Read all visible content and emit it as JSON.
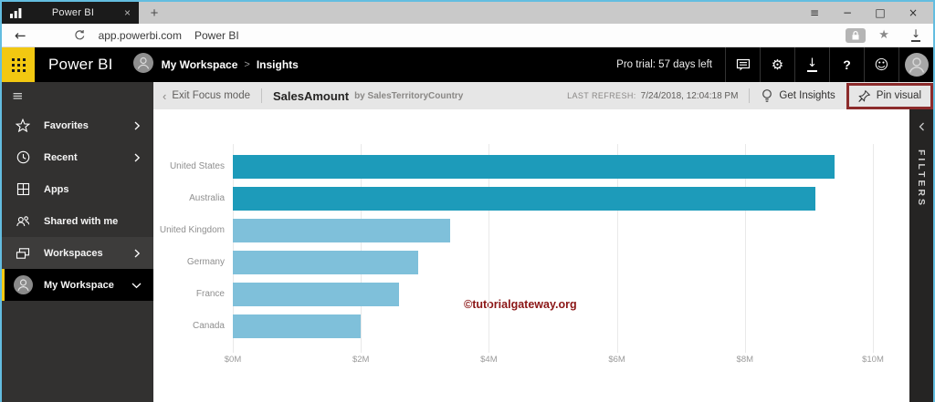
{
  "browser": {
    "tab_title": "Power BI",
    "url": "app.powerbi.com",
    "page_title": "Power BI"
  },
  "glyphs": {
    "back": "←",
    "menu": "≡",
    "minimize": "−",
    "maximize": "□",
    "close": "×",
    "tab_close": "×",
    "new_tab": "+",
    "bookmark_star": "★",
    "download_arrow": "↓",
    "gear": "⚙",
    "help": "?",
    "smiley": "☺",
    "hamburger": "≡",
    "chevron_left": "‹"
  },
  "header": {
    "brand": "Power BI",
    "breadcrumb": {
      "workspace": "My Workspace",
      "separator": ">",
      "page": "Insights"
    },
    "pro_trial": "Pro trial: 57 days left",
    "icon_names": [
      "feedback-bubble-icon",
      "gear-icon",
      "download-icon",
      "help-icon",
      "smiley-icon",
      "profile-avatar"
    ]
  },
  "sidebar": {
    "items": [
      {
        "label": "Favorites",
        "icon": "star",
        "chevron": "right",
        "state": "normal"
      },
      {
        "label": "Recent",
        "icon": "clock",
        "chevron": "right",
        "state": "normal"
      },
      {
        "label": "Apps",
        "icon": "apps",
        "chevron": null,
        "state": "normal"
      },
      {
        "label": "Shared with me",
        "icon": "people",
        "chevron": null,
        "state": "normal"
      },
      {
        "label": "Workspaces",
        "icon": "workspaces",
        "chevron": "right",
        "state": "highlight"
      },
      {
        "label": "My Workspace",
        "icon": "avatar",
        "chevron": "down",
        "state": "selected"
      }
    ]
  },
  "toolbar": {
    "exit_focus_label": "Exit Focus mode",
    "title": "SalesAmount",
    "subtitle": "by SalesTerritoryCountry",
    "last_refresh_label": "LAST REFRESH:",
    "last_refresh_value": "7/24/2018, 12:04:18 PM",
    "get_insights_label": "Get Insights",
    "pin_visual_label": "Pin visual"
  },
  "filters_panel": {
    "label": "FILTERS"
  },
  "watermark": "©tutorialgateway.org",
  "colors": {
    "accent_yellow": "#f2c811",
    "bar_dark": "#1d9bba",
    "bar_light": "#7fc0da",
    "pin_highlight_border": "#8c2b2b",
    "watermark_red": "#8b1616"
  },
  "chart_data": {
    "type": "bar",
    "orientation": "horizontal",
    "title": "SalesAmount by SalesTerritoryCountry",
    "categories": [
      "United States",
      "Australia",
      "United Kingdom",
      "Germany",
      "France",
      "Canada"
    ],
    "values_millions": [
      9.4,
      9.1,
      3.4,
      2.9,
      2.6,
      2.0
    ],
    "bar_colors": [
      "#1d9bba",
      "#1d9bba",
      "#7fc0da",
      "#7fc0da",
      "#7fc0da",
      "#7fc0da"
    ],
    "x_tick_labels": [
      "$0M",
      "$2M",
      "$4M",
      "$6M",
      "$8M",
      "$10M"
    ],
    "xlim_millions": [
      0,
      10
    ],
    "ylabel": "SalesTerritoryCountry",
    "xlabel": "SalesAmount",
    "grid": "vertical",
    "legend": "none"
  }
}
